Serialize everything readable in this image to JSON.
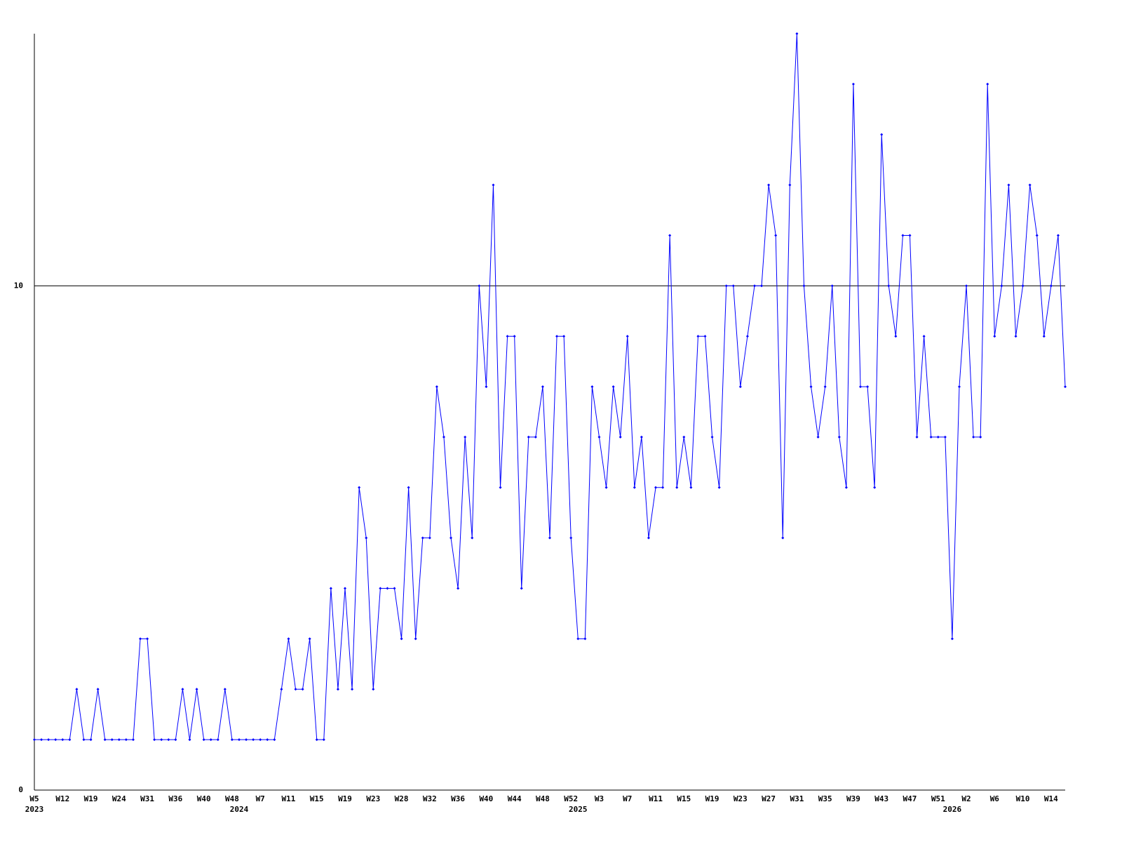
{
  "chart_data": {
    "type": "line",
    "categories": [
      "W5",
      null,
      null,
      null,
      "W12",
      null,
      null,
      null,
      "W19",
      null,
      null,
      null,
      "W24",
      null,
      null,
      null,
      "W31",
      null,
      null,
      null,
      "W36",
      null,
      null,
      null,
      "W40",
      null,
      null,
      null,
      "W48",
      null,
      null,
      null,
      "W7",
      null,
      null,
      null,
      "W11",
      null,
      null,
      null,
      "W15",
      null,
      null,
      null,
      "W19",
      null,
      null,
      null,
      "W23",
      null,
      null,
      null,
      "W28",
      null,
      null,
      null,
      "W32",
      null,
      null,
      null,
      "W36",
      null,
      null,
      null,
      "W40",
      null,
      null,
      null,
      "W44",
      null,
      null,
      null,
      "W48",
      null,
      null,
      null,
      "W52",
      null,
      null,
      null,
      "W3",
      null,
      null,
      null,
      "W7",
      null,
      null,
      null,
      "W11",
      null,
      null,
      null,
      "W15",
      null,
      null,
      null,
      "W19",
      null,
      null,
      null,
      "W23",
      null,
      null,
      null,
      "W27",
      null,
      null,
      null,
      "W31",
      null,
      null,
      null,
      "W35",
      null,
      null,
      null,
      "W39",
      null,
      null,
      null,
      "W43",
      null,
      null,
      null,
      "W47",
      null,
      null,
      null,
      "W51",
      null,
      null,
      null,
      "W2",
      null,
      null,
      null,
      "W6",
      null,
      null,
      null,
      "W10",
      null,
      null,
      null,
      "W14",
      null,
      null
    ],
    "category_years": [
      "2023",
      null,
      null,
      null,
      null,
      null,
      null,
      null,
      null,
      null,
      null,
      null,
      null,
      null,
      null,
      null,
      null,
      null,
      null,
      null,
      null,
      null,
      null,
      null,
      null,
      null,
      null,
      null,
      null,
      "2024",
      null,
      null,
      null,
      null,
      null,
      null,
      null,
      null,
      null,
      null,
      null,
      null,
      null,
      null,
      null,
      null,
      null,
      null,
      null,
      null,
      null,
      null,
      null,
      null,
      null,
      null,
      null,
      null,
      null,
      null,
      null,
      null,
      null,
      null,
      null,
      null,
      null,
      null,
      null,
      null,
      null,
      null,
      null,
      null,
      null,
      null,
      null,
      "2025",
      null,
      null,
      null,
      null,
      null,
      null,
      null,
      null,
      null,
      null,
      null,
      null,
      null,
      null,
      null,
      null,
      null,
      null,
      null,
      null,
      null,
      null,
      null,
      null,
      null,
      null,
      null,
      null,
      null,
      null,
      null,
      null,
      null,
      null,
      null,
      null,
      null,
      null,
      null,
      null,
      null,
      null,
      null,
      null,
      null,
      null,
      null,
      null,
      null,
      null,
      null,
      null,
      "2026",
      null,
      null,
      null,
      null,
      null,
      null,
      null,
      null,
      null,
      null,
      null,
      null,
      null,
      null,
      null,
      null
    ],
    "values": [
      1,
      1,
      1,
      1,
      1,
      1,
      2,
      1,
      1,
      2,
      1,
      1,
      1,
      1,
      1,
      3,
      3,
      1,
      1,
      1,
      1,
      2,
      1,
      2,
      1,
      1,
      1,
      2,
      1,
      1,
      1,
      1,
      1,
      1,
      1,
      2,
      3,
      2,
      2,
      3,
      1,
      1,
      4,
      2,
      4,
      2,
      6,
      5,
      2,
      4,
      4,
      4,
      3,
      6,
      3,
      5,
      5,
      8,
      7,
      5,
      4,
      7,
      5,
      10,
      8,
      12,
      6,
      9,
      9,
      4,
      7,
      7,
      8,
      5,
      9,
      9,
      5,
      3,
      3,
      8,
      7,
      6,
      8,
      7,
      9,
      6,
      7,
      5,
      6,
      6,
      11,
      6,
      7,
      6,
      9,
      9,
      7,
      6,
      10,
      10,
      8,
      9,
      10,
      10,
      12,
      11,
      5,
      12,
      15,
      10,
      8,
      7,
      8,
      10,
      7,
      6,
      14,
      8,
      8,
      6,
      13,
      10,
      9,
      11,
      11,
      7,
      9,
      7,
      7,
      7,
      3,
      8,
      10,
      7,
      7,
      14,
      9,
      10,
      12,
      9,
      10,
      12,
      11,
      9,
      10,
      11,
      8
    ],
    "color": "#0000ff",
    "ylim": [
      0,
      15
    ],
    "yticks": [
      0,
      10
    ],
    "grid": true
  }
}
